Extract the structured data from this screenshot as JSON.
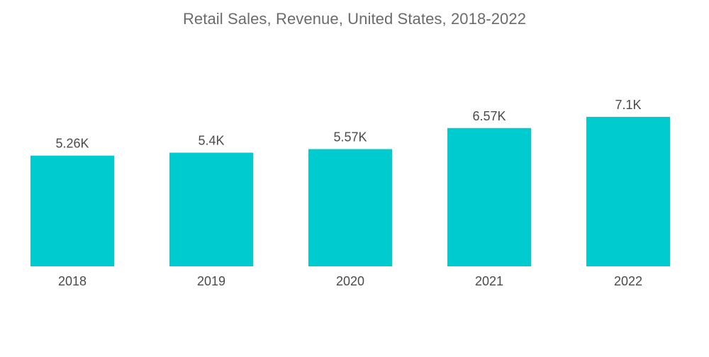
{
  "chart_data": {
    "type": "bar",
    "title": "Retail Sales, Revenue, United States, 2018-2022",
    "xlabel": "",
    "ylabel": "",
    "categories": [
      "2018",
      "2019",
      "2020",
      "2021",
      "2022"
    ],
    "values": [
      5.26,
      5.4,
      5.57,
      6.57,
      7.1
    ],
    "value_labels": [
      "5.26K",
      "5.4K",
      "5.57K",
      "6.57K",
      "7.1K"
    ],
    "value_unit": "K",
    "ylim": [
      0,
      7.1
    ],
    "grid": false,
    "legend": "none",
    "colors": {
      "bar": "#00ccd0",
      "text": "#4a4a4a",
      "title": "#6b6b6b"
    }
  }
}
